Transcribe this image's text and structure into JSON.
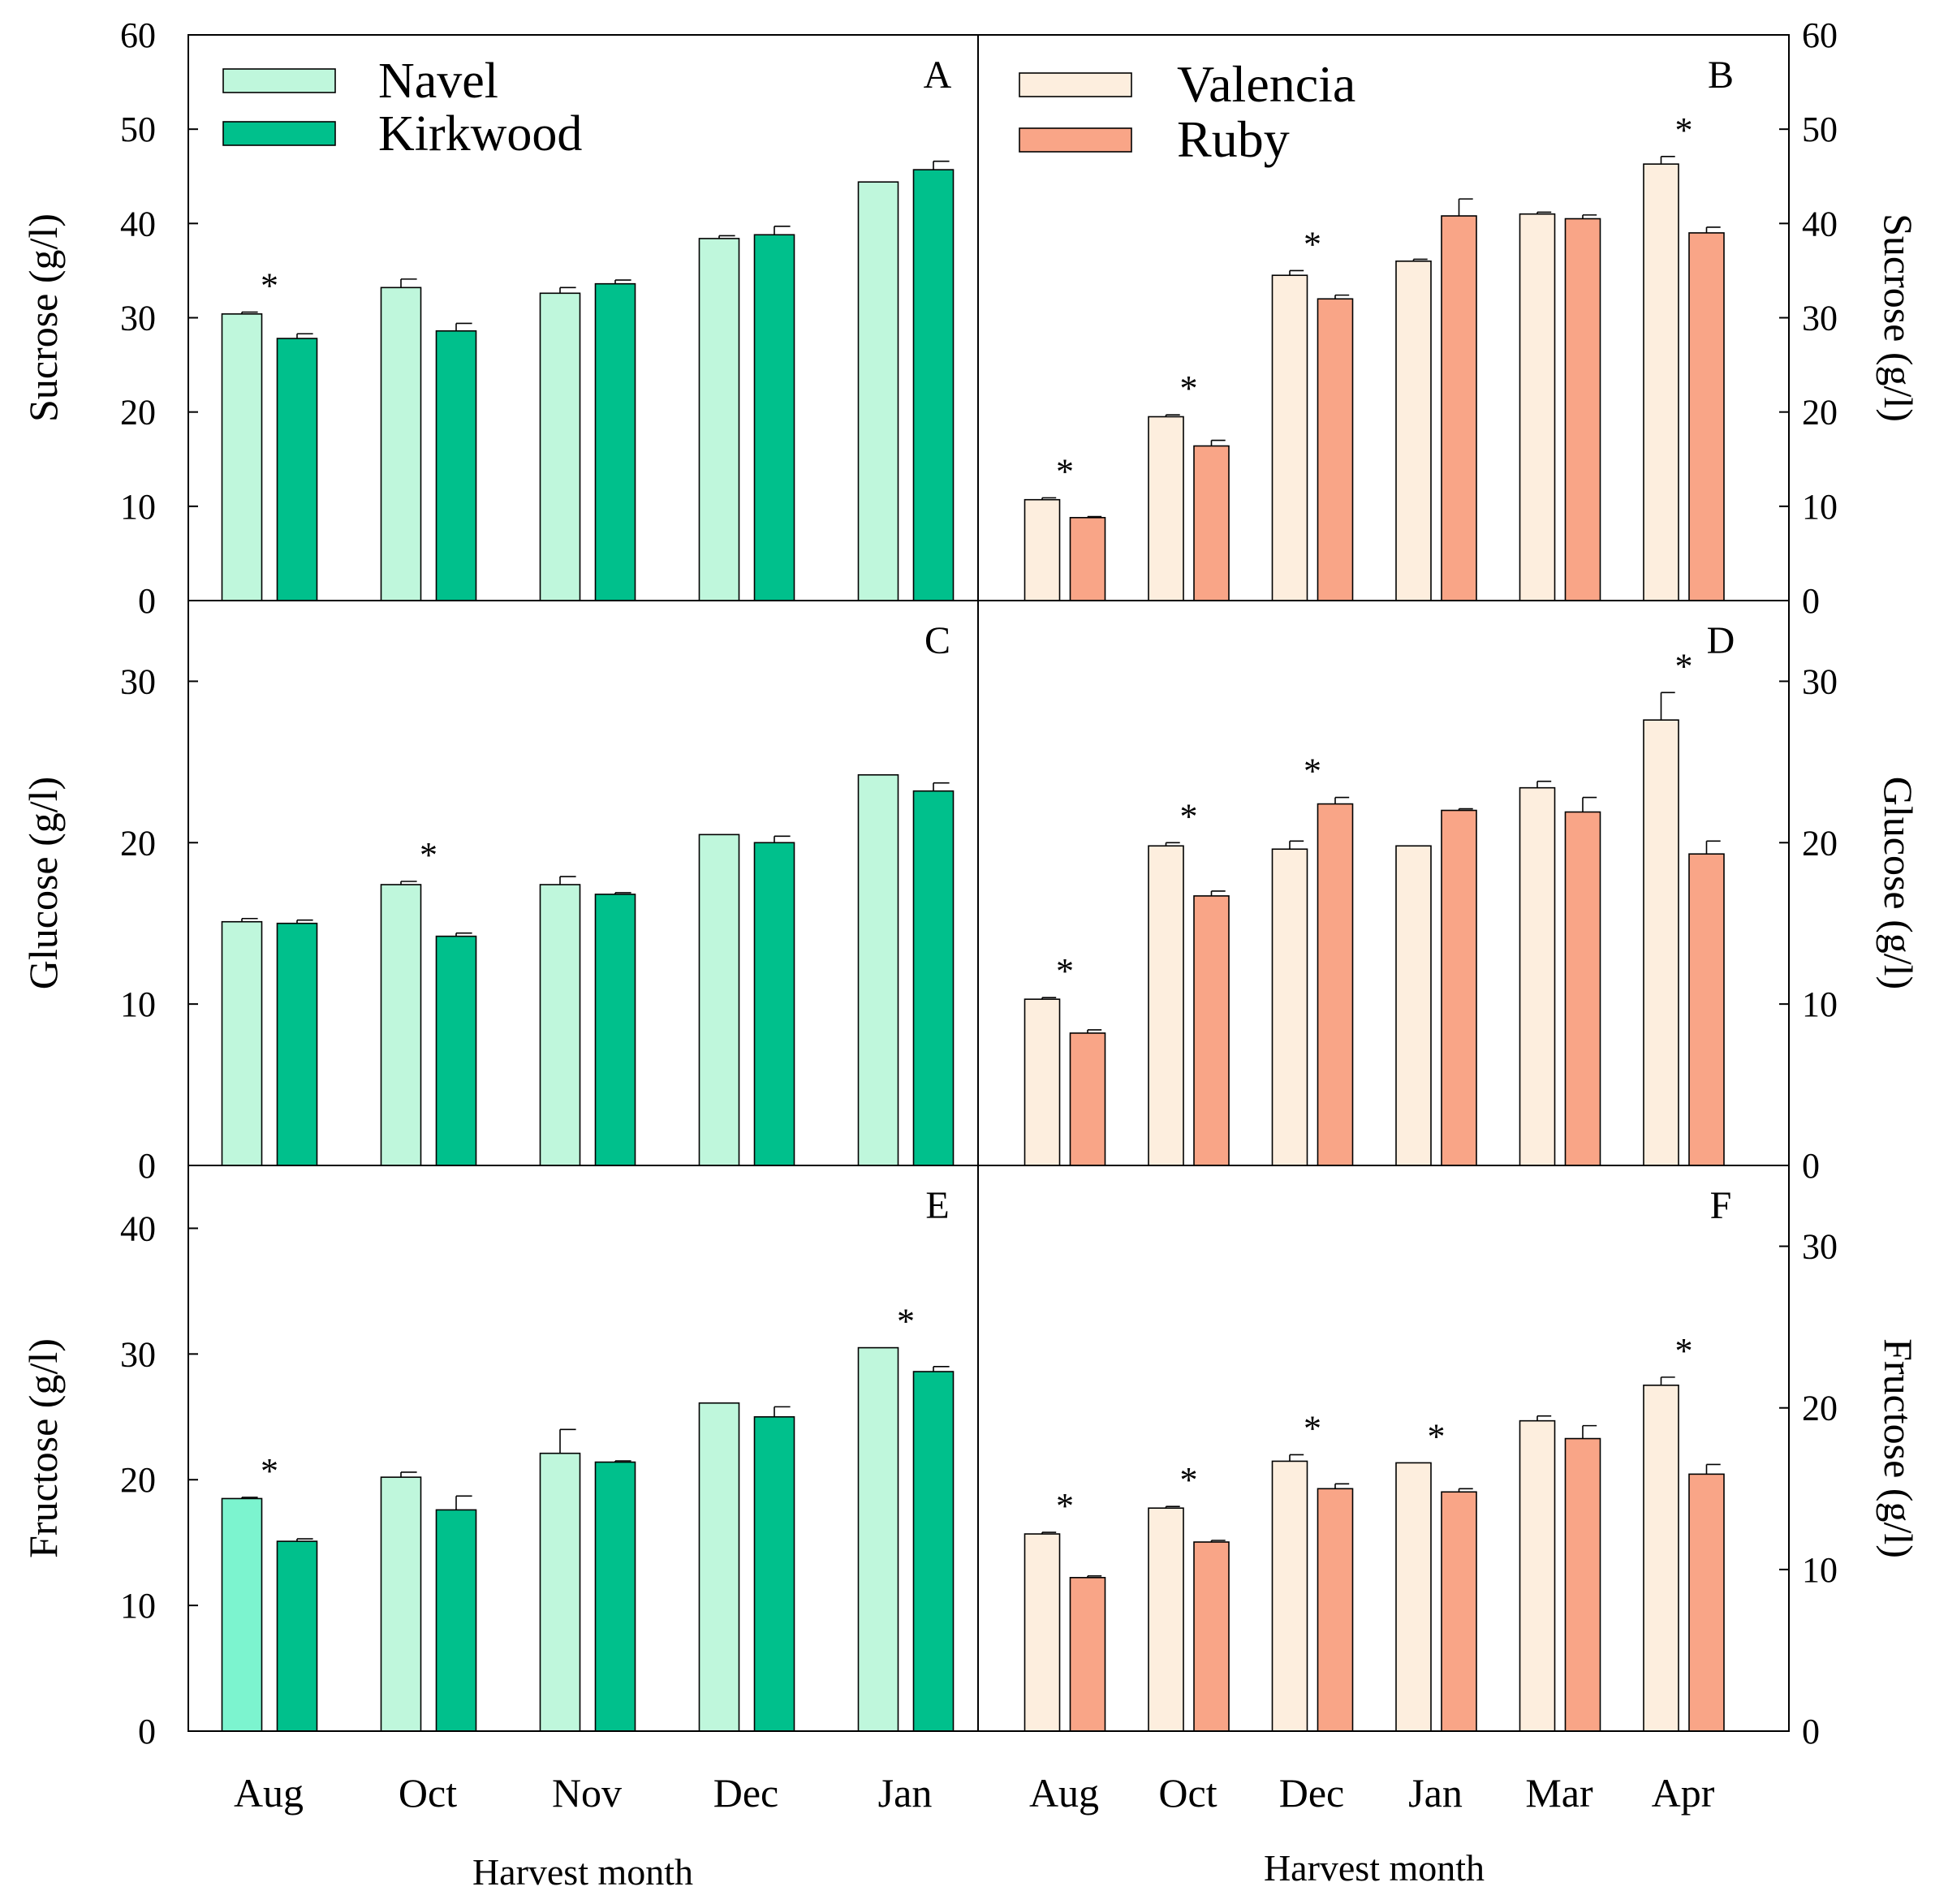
{
  "colors": {
    "navel": "#bff7dc",
    "navel_aug_fructose": "#7cf4cf",
    "kirkwood": "#00c08c",
    "valencia": "#fdeede",
    "ruby": "#f9a587",
    "outline": "#000000"
  },
  "x_axis": {
    "left_title": "Harvest month",
    "right_title": "Harvest month"
  },
  "chart_data": [
    {
      "panel": "A",
      "type": "bar",
      "side": "left",
      "ylabel": "Sucrose (g/l)",
      "ylim": [
        0,
        60
      ],
      "ticks": [
        0,
        10,
        20,
        30,
        40,
        50,
        60
      ],
      "categories": [
        "Aug",
        "Oct",
        "Nov",
        "Dec",
        "Jan"
      ],
      "legend": {
        "position": "top-left",
        "entries": [
          "Navel",
          "Kirkwood"
        ]
      },
      "series": [
        {
          "name": "Navel",
          "values": [
            30.4,
            33.2,
            32.6,
            38.4,
            44.4
          ],
          "errors": [
            0.2,
            0.9,
            0.6,
            0.3,
            0
          ],
          "colorKey": "navel"
        },
        {
          "name": "Kirkwood",
          "values": [
            27.8,
            28.6,
            33.6,
            38.8,
            45.7
          ],
          "errors": [
            0.5,
            0.8,
            0.4,
            0.9,
            0.9
          ],
          "colorKey": "kirkwood"
        }
      ],
      "significance": [
        "Aug"
      ]
    },
    {
      "panel": "B",
      "type": "bar",
      "side": "right",
      "ylabel": "Sucrose (g/l)",
      "ylim": [
        0,
        60
      ],
      "ticks": [
        0,
        10,
        20,
        30,
        40,
        50,
        60
      ],
      "categories": [
        "Aug",
        "Oct",
        "Dec",
        "Jan",
        "Mar",
        "Apr"
      ],
      "legend": {
        "position": "top-left",
        "entries": [
          "Valencia",
          "Ruby"
        ]
      },
      "series": [
        {
          "name": "Valencia",
          "values": [
            10.7,
            19.5,
            34.5,
            36.0,
            41.0,
            46.3
          ],
          "errors": [
            0.2,
            0.2,
            0.5,
            0.2,
            0.2,
            0.8
          ],
          "colorKey": "valencia"
        },
        {
          "name": "Ruby",
          "values": [
            8.8,
            16.4,
            32.0,
            40.8,
            40.5,
            39.0
          ],
          "errors": [
            0.1,
            0.6,
            0.4,
            1.8,
            0.4,
            0.6
          ],
          "colorKey": "ruby"
        }
      ],
      "significance": [
        "Aug",
        "Oct",
        "Dec",
        "Apr"
      ]
    },
    {
      "panel": "C",
      "type": "bar",
      "side": "left",
      "ylabel": "Glucose (g/l)",
      "ylim": [
        0,
        35
      ],
      "ticks": [
        0,
        10,
        20,
        30
      ],
      "categories": [
        "Aug",
        "Oct",
        "Nov",
        "Dec",
        "Jan"
      ],
      "series": [
        {
          "name": "Navel",
          "values": [
            15.1,
            17.4,
            17.4,
            20.5,
            24.2
          ],
          "errors": [
            0.2,
            0.2,
            0.5,
            0,
            0
          ],
          "colorKey": "navel"
        },
        {
          "name": "Kirkwood",
          "values": [
            15.0,
            14.2,
            16.8,
            20.0,
            23.2
          ],
          "errors": [
            0.2,
            0.2,
            0.1,
            0.4,
            0.5
          ],
          "colorKey": "kirkwood"
        }
      ],
      "significance": [
        "Oct"
      ]
    },
    {
      "panel": "D",
      "type": "bar",
      "side": "right",
      "ylabel": "Glucose (g/l)",
      "ylim": [
        0,
        35
      ],
      "ticks": [
        0,
        10,
        20,
        30
      ],
      "categories": [
        "Aug",
        "Oct",
        "Dec",
        "Jan",
        "Mar",
        "Apr"
      ],
      "series": [
        {
          "name": "Valencia",
          "values": [
            10.3,
            19.8,
            19.6,
            19.8,
            23.4,
            27.6
          ],
          "errors": [
            0.1,
            0.2,
            0.5,
            0,
            0.4,
            1.7
          ],
          "colorKey": "valencia"
        },
        {
          "name": "Ruby",
          "values": [
            8.2,
            16.7,
            22.4,
            22.0,
            21.9,
            19.3
          ],
          "errors": [
            0.2,
            0.3,
            0.4,
            0.1,
            0.9,
            0.8
          ],
          "colorKey": "ruby"
        }
      ],
      "significance": [
        "Aug",
        "Oct",
        "Dec",
        "Apr"
      ]
    },
    {
      "panel": "E",
      "type": "bar",
      "side": "left",
      "ylabel": "Fructose (g/l)",
      "ylim": [
        0,
        45
      ],
      "ticks": [
        0,
        10,
        20,
        30,
        40
      ],
      "categories": [
        "Aug",
        "Oct",
        "Nov",
        "Dec",
        "Jan"
      ],
      "series": [
        {
          "name": "Navel",
          "values": [
            18.5,
            20.2,
            22.1,
            26.1,
            30.5
          ],
          "errors": [
            0.1,
            0.4,
            1.9,
            0,
            0
          ],
          "colorKey": "navel"
        },
        {
          "name": "Kirkwood",
          "values": [
            15.1,
            17.6,
            21.4,
            25.0,
            28.6
          ],
          "errors": [
            0.2,
            1.1,
            0.1,
            0.8,
            0.4
          ],
          "colorKey": "kirkwood"
        }
      ],
      "significance": [
        "Aug",
        "Jan"
      ]
    },
    {
      "panel": "F",
      "type": "bar",
      "side": "right",
      "ylabel": "Fructose (g/l)",
      "ylim": [
        0,
        35
      ],
      "ticks": [
        0,
        10,
        20,
        30
      ],
      "categories": [
        "Aug",
        "Oct",
        "Dec",
        "Jan",
        "Mar",
        "Apr"
      ],
      "series": [
        {
          "name": "Valencia",
          "values": [
            12.2,
            13.8,
            16.7,
            16.6,
            19.2,
            21.4
          ],
          "errors": [
            0.1,
            0.1,
            0.4,
            0,
            0.3,
            0.5
          ],
          "colorKey": "valencia"
        },
        {
          "name": "Ruby",
          "values": [
            9.5,
            11.7,
            15.0,
            14.8,
            18.1,
            15.9
          ],
          "errors": [
            0.1,
            0.1,
            0.3,
            0.2,
            0.8,
            0.6
          ],
          "colorKey": "ruby"
        }
      ],
      "significance": [
        "Aug",
        "Oct",
        "Dec",
        "Jan",
        "Apr"
      ]
    }
  ]
}
